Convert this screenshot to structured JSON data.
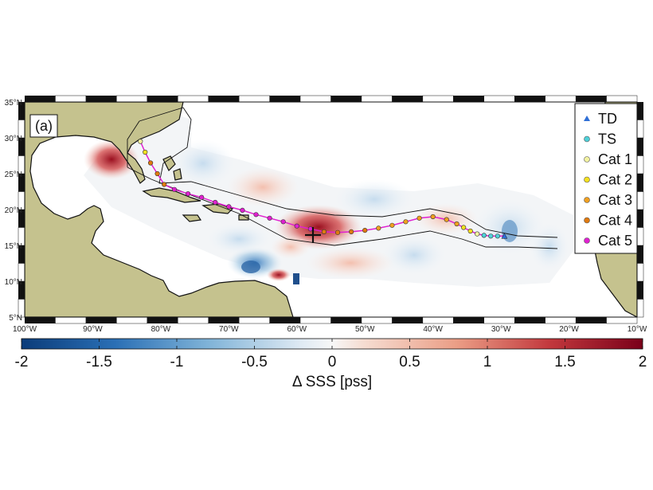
{
  "panel_label": "(a)",
  "colors": {
    "land": "#c5c28e",
    "ocean": "#ffffff",
    "track_line": "#e020d0",
    "cmap_neg": "#0b3c7a",
    "cmap_zero": "#f7f7f7",
    "cmap_pos": "#7a0019"
  },
  "legend": {
    "items": [
      {
        "label": "TD",
        "color": "#2f6fd6",
        "shape": "triangle"
      },
      {
        "label": "TS",
        "color": "#4fd0d8",
        "shape": "circle"
      },
      {
        "label": "Cat 1",
        "color": "#f2f2a0",
        "shape": "circle"
      },
      {
        "label": "Cat 2",
        "color": "#f4e020",
        "shape": "circle"
      },
      {
        "label": "Cat 3",
        "color": "#f0a020",
        "shape": "circle"
      },
      {
        "label": "Cat 4",
        "color": "#e07a10",
        "shape": "circle"
      },
      {
        "label": "Cat 5",
        "color": "#e020d0",
        "shape": "circle"
      }
    ]
  },
  "axes": {
    "lat_labels": [
      "35°N",
      "30°N",
      "25°N",
      "20°N",
      "15°N",
      "10°N",
      "5°N"
    ],
    "lon_labels": [
      "100°W",
      "90°W",
      "80°W",
      "70°W",
      "60°W",
      "50°W",
      "40°W",
      "30°W",
      "20°W",
      "10°W"
    ]
  },
  "colorbar": {
    "title": "Δ SSS [pss]",
    "tick_labels": [
      "-2",
      "-1.5",
      "-1",
      "-0.5",
      "0",
      "0.5",
      "1",
      "1.5",
      "2"
    ],
    "vmin": -2,
    "vmax": 2
  },
  "track": {
    "points": [
      {
        "lon": -29.5,
        "lat": 16.3,
        "cat": "TD"
      },
      {
        "lon": -30.5,
        "lat": 16.3,
        "cat": "TS"
      },
      {
        "lon": -31.5,
        "lat": 16.3,
        "cat": "TS"
      },
      {
        "lon": -32.5,
        "lat": 16.4,
        "cat": "TS"
      },
      {
        "lon": -33.5,
        "lat": 16.6,
        "cat": "Cat 1"
      },
      {
        "lon": -34.5,
        "lat": 17.0,
        "cat": "Cat 2"
      },
      {
        "lon": -35.5,
        "lat": 17.5,
        "cat": "Cat 2"
      },
      {
        "lon": -36.5,
        "lat": 18.0,
        "cat": "Cat 3"
      },
      {
        "lon": -38.0,
        "lat": 18.6,
        "cat": "Cat 3"
      },
      {
        "lon": -40.0,
        "lat": 19.0,
        "cat": "Cat 3"
      },
      {
        "lon": -42.0,
        "lat": 18.8,
        "cat": "Cat 3"
      },
      {
        "lon": -44.0,
        "lat": 18.3,
        "cat": "Cat 3"
      },
      {
        "lon": -46.0,
        "lat": 17.8,
        "cat": "Cat 3"
      },
      {
        "lon": -48.0,
        "lat": 17.4,
        "cat": "Cat 3"
      },
      {
        "lon": -50.0,
        "lat": 17.1,
        "cat": "Cat 4"
      },
      {
        "lon": -52.0,
        "lat": 16.9,
        "cat": "Cat 4"
      },
      {
        "lon": -54.0,
        "lat": 16.8,
        "cat": "Cat 4"
      },
      {
        "lon": -56.0,
        "lat": 16.9,
        "cat": "Cat 4"
      },
      {
        "lon": -58.0,
        "lat": 17.3,
        "cat": "Cat 5"
      },
      {
        "lon": -60.0,
        "lat": 17.7,
        "cat": "Cat 5"
      },
      {
        "lon": -62.0,
        "lat": 18.3,
        "cat": "Cat 5"
      },
      {
        "lon": -64.0,
        "lat": 18.8,
        "cat": "Cat 5"
      },
      {
        "lon": -66.0,
        "lat": 19.3,
        "cat": "Cat 5"
      },
      {
        "lon": -68.0,
        "lat": 19.9,
        "cat": "Cat 5"
      },
      {
        "lon": -70.0,
        "lat": 20.4,
        "cat": "Cat 5"
      },
      {
        "lon": -72.0,
        "lat": 21.0,
        "cat": "Cat 5"
      },
      {
        "lon": -74.0,
        "lat": 21.7,
        "cat": "Cat 5"
      },
      {
        "lon": -76.0,
        "lat": 22.2,
        "cat": "Cat 5"
      },
      {
        "lon": -78.0,
        "lat": 22.8,
        "cat": "Cat 5"
      },
      {
        "lon": -79.5,
        "lat": 23.5,
        "cat": "Cat 4"
      },
      {
        "lon": -80.5,
        "lat": 25.0,
        "cat": "Cat 4"
      },
      {
        "lon": -81.5,
        "lat": 26.5,
        "cat": "Cat 4"
      },
      {
        "lon": -82.3,
        "lat": 28.0,
        "cat": "Cat 2"
      },
      {
        "lon": -83.0,
        "lat": 29.5,
        "cat": "Cat 1"
      }
    ]
  }
}
